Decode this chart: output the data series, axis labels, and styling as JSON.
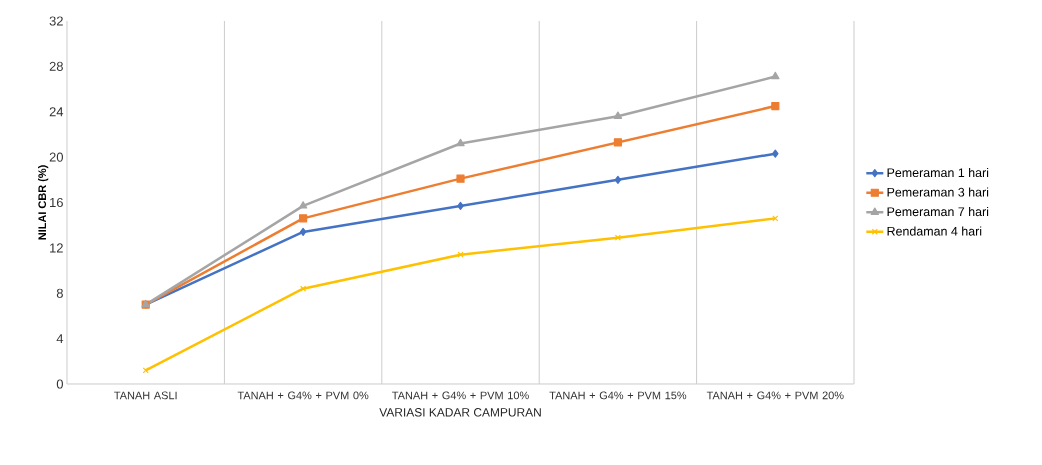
{
  "chart_data": {
    "type": "line",
    "xlabel": "VARIASI KADAR CAMPURAN",
    "ylabel": "NILAI CBR (%)",
    "categories": [
      "TANAH ASLI",
      "TANAH + G4% + PVM 0%",
      "TANAH + G4% + PVM 10%",
      "TANAH + G4% + PVM 15%",
      "TANAH + G4% + PVM 20%"
    ],
    "series": [
      {
        "name": "Pemeraman 1 hari",
        "color": "#4472c4",
        "marker": "diamond",
        "values": [
          7.0,
          13.4,
          15.7,
          18.0,
          20.3
        ]
      },
      {
        "name": "Pemeraman 3 hari",
        "color": "#ed7d31",
        "marker": "square",
        "values": [
          7.0,
          14.6,
          18.1,
          21.3,
          24.5
        ]
      },
      {
        "name": "Pemeraman 7 hari",
        "color": "#a5a5a5",
        "marker": "triangle",
        "values": [
          7.0,
          15.7,
          21.2,
          23.6,
          27.1
        ]
      },
      {
        "name": "Rendaman 4 hari",
        "color": "#ffc000",
        "marker": "cross",
        "values": [
          1.2,
          8.4,
          11.4,
          12.9,
          14.6
        ]
      }
    ],
    "ylim": [
      0,
      32
    ],
    "yticks": [
      0,
      4,
      8,
      12,
      16,
      20,
      24,
      28,
      32
    ],
    "grid": "x",
    "legend": "right",
    "line_style": "solid"
  }
}
